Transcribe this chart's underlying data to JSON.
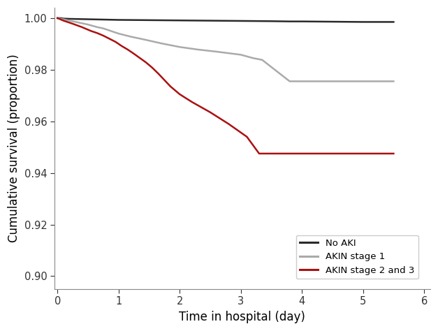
{
  "title": "",
  "xlabel": "Time in hospital (day)",
  "ylabel": "Cumulative survival (proportion)",
  "xlim": [
    -0.05,
    6.1
  ],
  "ylim": [
    0.895,
    1.004
  ],
  "yticks": [
    0.9,
    0.92,
    0.94,
    0.96,
    0.98,
    1.0
  ],
  "xticks": [
    0,
    1,
    2,
    3,
    4,
    5,
    6
  ],
  "background_color": "#ffffff",
  "no_aki": {
    "x": [
      0.0,
      0.05,
      0.1,
      0.2,
      0.4,
      0.6,
      0.8,
      1.0,
      1.5,
      2.0,
      2.5,
      3.0,
      3.5,
      3.8,
      4.0,
      4.5,
      5.0,
      5.2,
      5.5
    ],
    "y": [
      1.0,
      1.0,
      0.9998,
      0.9997,
      0.9996,
      0.9995,
      0.9994,
      0.9993,
      0.9992,
      0.9991,
      0.999,
      0.9989,
      0.9988,
      0.9987,
      0.9987,
      0.9986,
      0.9985,
      0.9985,
      0.9985
    ],
    "color": "#2b2b2b",
    "linewidth": 1.8,
    "label": "No AKI"
  },
  "akin1": {
    "x": [
      0.0,
      0.3,
      0.5,
      0.65,
      0.75,
      0.85,
      1.0,
      1.2,
      1.4,
      1.55,
      1.7,
      1.85,
      2.0,
      2.3,
      2.6,
      3.0,
      3.2,
      3.35,
      3.8,
      4.0,
      4.5,
      5.0,
      5.2,
      5.5
    ],
    "y": [
      1.0,
      0.9985,
      0.9975,
      0.9965,
      0.996,
      0.9952,
      0.994,
      0.9928,
      0.9918,
      0.991,
      0.9902,
      0.9895,
      0.9888,
      0.9878,
      0.987,
      0.9858,
      0.9845,
      0.9838,
      0.9755,
      0.9755,
      0.9755,
      0.9755,
      0.9755,
      0.9755
    ],
    "color": "#aaaaaa",
    "linewidth": 1.8,
    "label": "AKIN stage 1"
  },
  "akin23": {
    "x": [
      0.0,
      0.1,
      0.25,
      0.4,
      0.55,
      0.65,
      0.75,
      0.85,
      0.95,
      1.05,
      1.15,
      1.25,
      1.35,
      1.45,
      1.55,
      1.65,
      1.75,
      1.85,
      2.0,
      2.2,
      2.5,
      2.8,
      3.1,
      3.3,
      3.8,
      4.0,
      4.5,
      5.0,
      5.2,
      5.5
    ],
    "y": [
      1.0,
      0.999,
      0.9978,
      0.9965,
      0.995,
      0.9942,
      0.9932,
      0.992,
      0.9908,
      0.9892,
      0.9878,
      0.9862,
      0.9845,
      0.9828,
      0.9808,
      0.9785,
      0.976,
      0.9735,
      0.9705,
      0.9675,
      0.9635,
      0.959,
      0.954,
      0.9475,
      0.9475,
      0.9475,
      0.9475,
      0.9475,
      0.9475,
      0.9475
    ],
    "color": "#aa1111",
    "linewidth": 1.8,
    "label": "AKIN stage 2 and 3"
  },
  "fontsize_axis_label": 12,
  "fontsize_tick": 10.5
}
